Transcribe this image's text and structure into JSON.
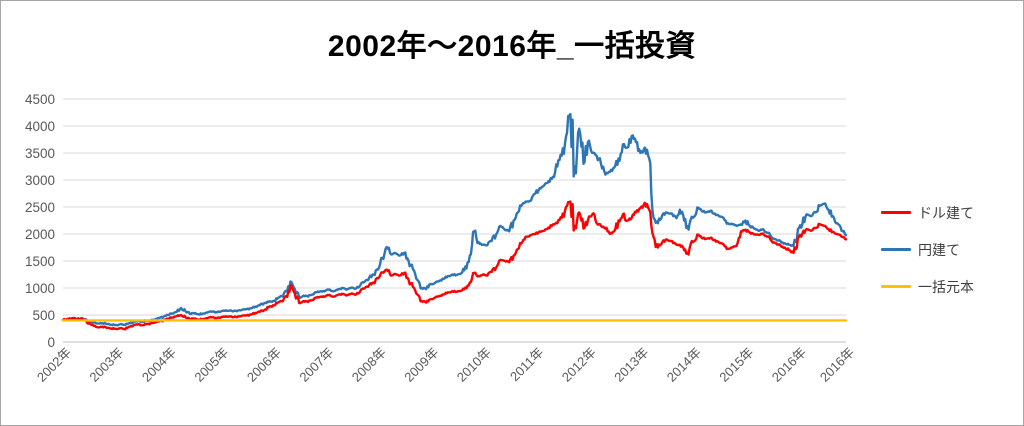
{
  "title": "2002年～2016年_一括投資",
  "legend": {
    "items": [
      {
        "label": "ドル建て",
        "color": "#FF0000"
      },
      {
        "label": "円建て",
        "color": "#2E75B6"
      },
      {
        "label": "一括元本",
        "color": "#FFC000"
      }
    ]
  },
  "colors": {
    "background": "#FFFFFF",
    "frame_border": "#A6A6A6",
    "gridline": "#D9D9D9",
    "axis_line": "#BFBFBF",
    "tick_label": "#595959",
    "title": "#000000",
    "series_dollar": "#FF0000",
    "series_yen": "#2E75B6",
    "series_principal": "#FFC000"
  },
  "chart_data": {
    "type": "line",
    "title": "2002年～2016年_一括投資",
    "xlabel": "",
    "ylabel": "",
    "ylim": [
      0,
      4500
    ],
    "y_ticks": [
      0,
      500,
      1000,
      1500,
      2000,
      2500,
      3000,
      3500,
      4000,
      4500
    ],
    "x_tick_labels": [
      "2002年",
      "2003年",
      "2004年",
      "2005年",
      "2006年",
      "2007年",
      "2008年",
      "2009年",
      "2010年",
      "2011年",
      "2012年",
      "2013年",
      "2014年",
      "2015年",
      "2016年",
      "2016年"
    ],
    "x_start": "2002-01",
    "x_end": "2016-12",
    "x_resolution": "monthly",
    "grid": "horizontal",
    "legend_position": "right",
    "series": [
      {
        "name": "ドル建て",
        "color": "#FF0000",
        "values": [
          405,
          425,
          435,
          420,
          430,
          410,
          350,
          300,
          270,
          285,
          260,
          250,
          245,
          255,
          240,
          280,
          300,
          320,
          310,
          330,
          345,
          360,
          380,
          400,
          430,
          455,
          480,
          500,
          460,
          420,
          430,
          415,
          425,
          440,
          455,
          445,
          450,
          465,
          470,
          460,
          475,
          490,
          495,
          510,
          540,
          560,
          590,
          640,
          680,
          720,
          760,
          850,
          1050,
          900,
          720,
          760,
          740,
          780,
          820,
          840,
          850,
          870,
          840,
          880,
          890,
          870,
          900,
          880,
          950,
          1000,
          1060,
          1100,
          1180,
          1290,
          1340,
          1230,
          1260,
          1230,
          1280,
          1150,
          1020,
          880,
          760,
          730,
          790,
          820,
          850,
          880,
          920,
          940,
          930,
          950,
          1010,
          1100,
          1280,
          1220,
          1250,
          1230,
          1300,
          1380,
          1520,
          1500,
          1480,
          1600,
          1720,
          1850,
          1950,
          1980,
          2000,
          2050,
          2060,
          2120,
          2180,
          2200,
          2300,
          2500,
          2600,
          2150,
          2400,
          2100,
          2250,
          2365,
          2200,
          2150,
          2100,
          2000,
          2050,
          2250,
          2365,
          2250,
          2300,
          2400,
          2480,
          2580,
          2450,
          1950,
          1750,
          1850,
          1900,
          1870,
          1820,
          1800,
          1700,
          1620,
          1850,
          1990,
          1930,
          1910,
          1930,
          1890,
          1840,
          1810,
          1730,
          1750,
          1780,
          2050,
          2080,
          2030,
          1990,
          1985,
          2010,
          1950,
          1870,
          1830,
          1790,
          1750,
          1700,
          1650,
          1930,
          2000,
          2090,
          2060,
          2110,
          2180,
          2150,
          2090,
          2040,
          2000,
          1950,
          1900
        ]
      },
      {
        "name": "円建て",
        "color": "#2E75B6",
        "values": [
          405,
          430,
          440,
          430,
          435,
          420,
          390,
          360,
          340,
          350,
          330,
          320,
          315,
          325,
          320,
          345,
          360,
          380,
          375,
          390,
          400,
          415,
          440,
          470,
          500,
          530,
          560,
          630,
          570,
          520,
          530,
          515,
          525,
          545,
          560,
          555,
          560,
          575,
          580,
          570,
          585,
          600,
          610,
          625,
          655,
          680,
          720,
          740,
          760,
          800,
          850,
          950,
          1120,
          980,
          820,
          860,
          840,
          880,
          920,
          940,
          950,
          970,
          940,
          980,
          1000,
          980,
          1010,
          990,
          1060,
          1120,
          1190,
          1250,
          1340,
          1560,
          1760,
          1620,
          1650,
          1600,
          1650,
          1500,
          1350,
          1150,
          1000,
          980,
          1070,
          1090,
          1130,
          1170,
          1220,
          1250,
          1240,
          1270,
          1400,
          1600,
          2050,
          1850,
          1800,
          1790,
          1870,
          1990,
          2150,
          2080,
          2050,
          2250,
          2400,
          2550,
          2600,
          2620,
          2750,
          2850,
          2900,
          2980,
          3060,
          3250,
          3450,
          3800,
          4220,
          3250,
          3950,
          3300,
          3700,
          3500,
          3450,
          3300,
          3100,
          3150,
          3230,
          3400,
          3660,
          3600,
          3815,
          3700,
          3500,
          3600,
          3400,
          2300,
          2200,
          2350,
          2400,
          2380,
          2320,
          2450,
          2250,
          2080,
          2300,
          2490,
          2430,
          2400,
          2430,
          2380,
          2330,
          2300,
          2200,
          2180,
          2150,
          2180,
          2250,
          2150,
          2100,
          2060,
          2090,
          2020,
          1940,
          1900,
          1870,
          1830,
          1800,
          1780,
          2090,
          2180,
          2365,
          2330,
          2400,
          2520,
          2560,
          2450,
          2330,
          2200,
          2060,
          1980
        ]
      },
      {
        "name": "一括元本",
        "color": "#FFC000",
        "constant": 400
      }
    ]
  }
}
